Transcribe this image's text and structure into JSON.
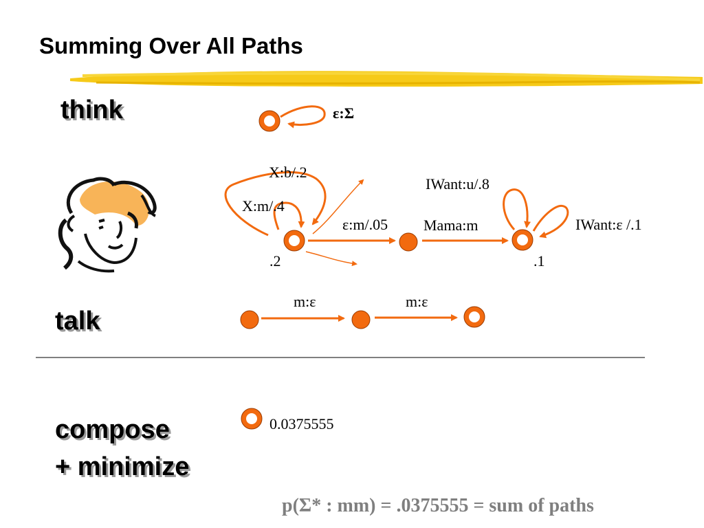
{
  "title": "Summing Over All Paths",
  "sections": {
    "think": "think",
    "talk": "talk",
    "compose_line1": "compose",
    "compose_line2": "+ minimize"
  },
  "think_fst": {
    "loop_label": "ε:Σ"
  },
  "model_fst": {
    "arc_xb": "X:b/.2",
    "arc_xm": "X:m/.4",
    "arc_em": "ε:m/.05",
    "arc_mama": "Mama:m",
    "arc_iwant_u": "IWant:u/.8",
    "arc_iwant_eps": "IWant:ε /.1",
    "final_weight_start": ".2",
    "final_weight_end": ".1"
  },
  "talk_fst": {
    "arc1": "m:ε",
    "arc2": "m:ε"
  },
  "compose_result": "0.0375555",
  "footer": "p(Σ* : mm) = .0375555 = sum of paths",
  "colors": {
    "node_fill": "#f26a0f",
    "node_stroke": "#9a3a00",
    "edge": "#f26a0f",
    "highlighter": "#f5c400",
    "footer_text": "#7f7f7f"
  },
  "icons": [
    "highlighter-stroke",
    "face-clipart"
  ]
}
